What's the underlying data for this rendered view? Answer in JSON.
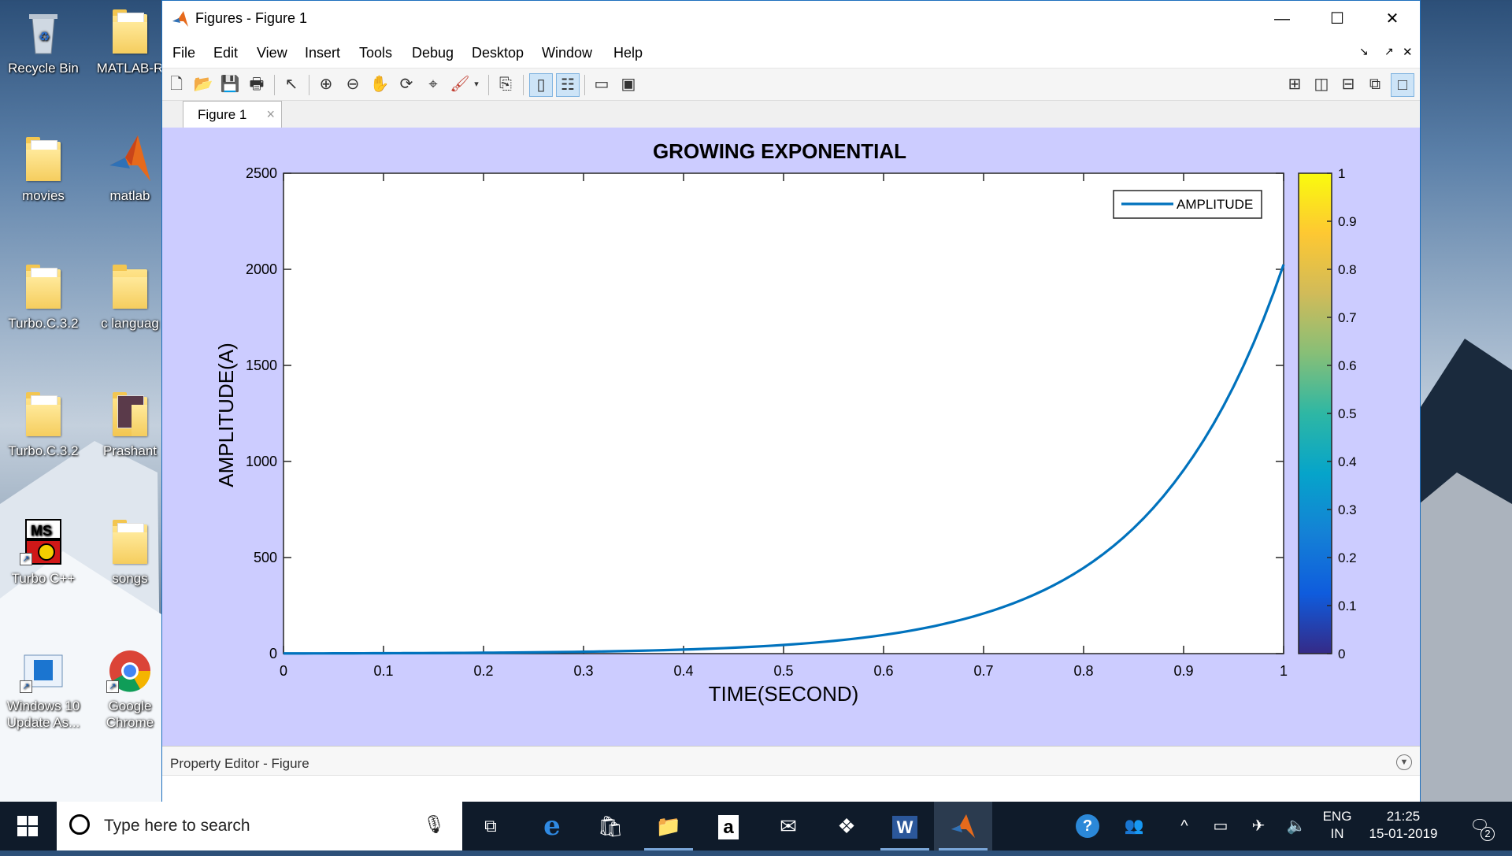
{
  "desktop": {
    "icons": [
      {
        "label": "Recycle Bin"
      },
      {
        "label": "MATLAB-R"
      },
      {
        "label": "movies"
      },
      {
        "label": "matlab"
      },
      {
        "label": "Turbo.C.3.2"
      },
      {
        "label": "c languag"
      },
      {
        "label": "Turbo.C.3.2"
      },
      {
        "label": "Prashant"
      },
      {
        "label": "Turbo C++"
      },
      {
        "label": "songs"
      },
      {
        "label": "Windows 10 Update As..."
      },
      {
        "label": "Google Chrome"
      }
    ]
  },
  "window": {
    "title": "Figures - Figure 1",
    "minimize": "—",
    "maximize": "☐",
    "close": "✕",
    "menu": [
      "File",
      "Edit",
      "View",
      "Insert",
      "Tools",
      "Debug",
      "Desktop",
      "Window",
      "Help"
    ],
    "menu_right": [
      "↘",
      "↗",
      "✕"
    ],
    "tab_label": "Figure 1",
    "tab_close": "×",
    "property_editor_label": "Property Editor - Figure"
  },
  "chart_data": {
    "type": "line",
    "title": "GROWING EXPONENTIAL",
    "xlabel": "TIME(SECOND)",
    "ylabel": "AMPLITUDE(A)",
    "xlim": [
      0,
      1
    ],
    "ylim": [
      0,
      2500
    ],
    "xticks": [
      0,
      0.1,
      0.2,
      0.3,
      0.4,
      0.5,
      0.6,
      0.7,
      0.8,
      0.9,
      1
    ],
    "yticks": [
      0,
      500,
      1000,
      1500,
      2000,
      2500
    ],
    "grid": false,
    "legend_position": "top-right",
    "series": [
      {
        "name": "AMPLITUDE",
        "color": "#0072bd",
        "x": [
          0,
          0.1,
          0.2,
          0.3,
          0.4,
          0.5,
          0.6,
          0.7,
          0.8,
          0.9,
          1.0
        ],
        "y": [
          1,
          2.1,
          4.5,
          9.8,
          21,
          45,
          97,
          209,
          446,
          955,
          2025
        ]
      }
    ],
    "colorbar": {
      "ticks": [
        0,
        0.1,
        0.2,
        0.3,
        0.4,
        0.5,
        0.6,
        0.7,
        0.8,
        0.9,
        1
      ],
      "range": [
        0,
        1
      ],
      "colormap": [
        "#352a87",
        "#0f5cdd",
        "#1481d6",
        "#06a4ca",
        "#2eb7a4",
        "#87bf77",
        "#d1bb59",
        "#fec832",
        "#f9fb0e"
      ]
    }
  },
  "taskbar": {
    "start_icon": "windows-icon",
    "search_placeholder": "Type here to search",
    "language": "ENG",
    "region": "IN",
    "time": "21:25",
    "date": "15-01-2019",
    "notification_count": "2"
  }
}
